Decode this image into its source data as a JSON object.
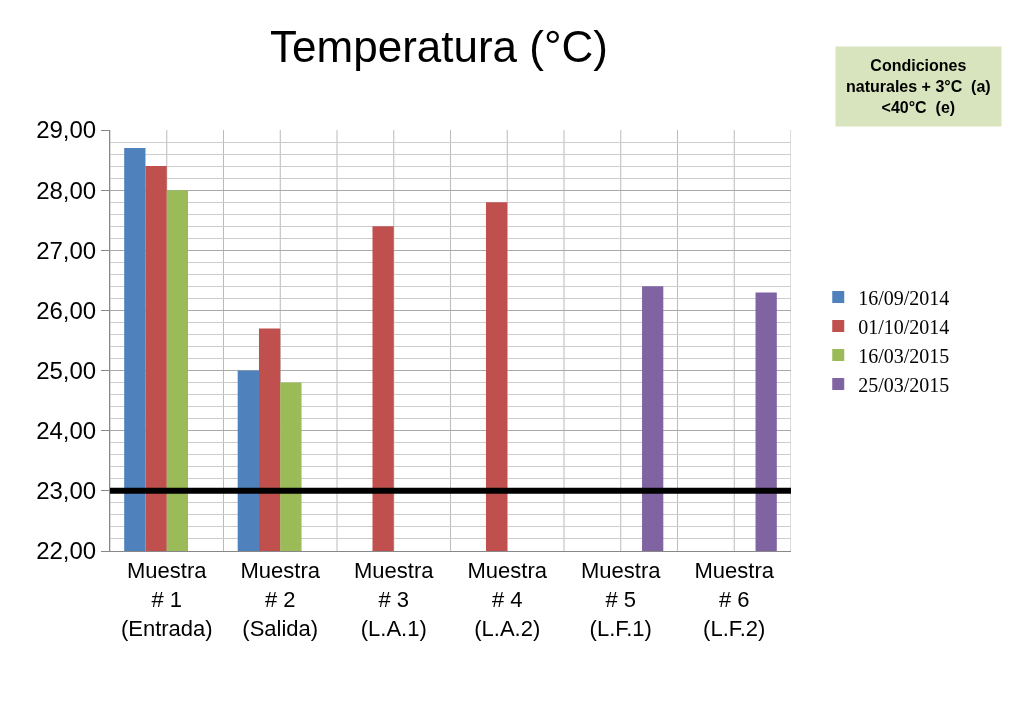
{
  "chart_data": {
    "type": "bar",
    "title": "Temperatura (°C)",
    "categories": [
      "Muestra\n# 1\n(Entrada)",
      "Muestra\n# 2\n(Salida)",
      "Muestra\n# 3\n(L.A.1)",
      "Muestra\n# 4\n(L.A.2)",
      "Muestra\n# 5\n(L.F.1)",
      "Muestra\n# 6\n(L.F.2)"
    ],
    "series": [
      {
        "name": "16/09/2014",
        "color": "#4f81bd",
        "values": [
          28.7,
          25.0,
          null,
          null,
          null,
          null
        ]
      },
      {
        "name": "01/10/2014",
        "color": "#c0504d",
        "values": [
          28.4,
          25.7,
          27.4,
          27.8,
          null,
          null
        ]
      },
      {
        "name": "16/03/2015",
        "color": "#9bbb59",
        "values": [
          28.0,
          24.8,
          null,
          null,
          null,
          null
        ]
      },
      {
        "name": "25/03/2015",
        "color": "#8064a2",
        "values": [
          null,
          null,
          null,
          null,
          26.4,
          26.3
        ]
      }
    ],
    "ylim": [
      22,
      29
    ],
    "yticks": [
      {
        "value": 22,
        "label": "22,00"
      },
      {
        "value": 23,
        "label": "23,00"
      },
      {
        "value": 24,
        "label": "24,00"
      },
      {
        "value": 25,
        "label": "25,00"
      },
      {
        "value": 26,
        "label": "26,00"
      },
      {
        "value": 27,
        "label": "27,00"
      },
      {
        "value": 28,
        "label": "28,00"
      },
      {
        "value": 29,
        "label": "29,00"
      }
    ],
    "ref_lines": [
      {
        "axis": "y",
        "value": 23,
        "color": "#000000"
      }
    ],
    "annotations": [
      "Condiciones\nnaturales + 3°C  (a)\n<40°C  (e)"
    ],
    "grid": true,
    "legend": "right"
  }
}
